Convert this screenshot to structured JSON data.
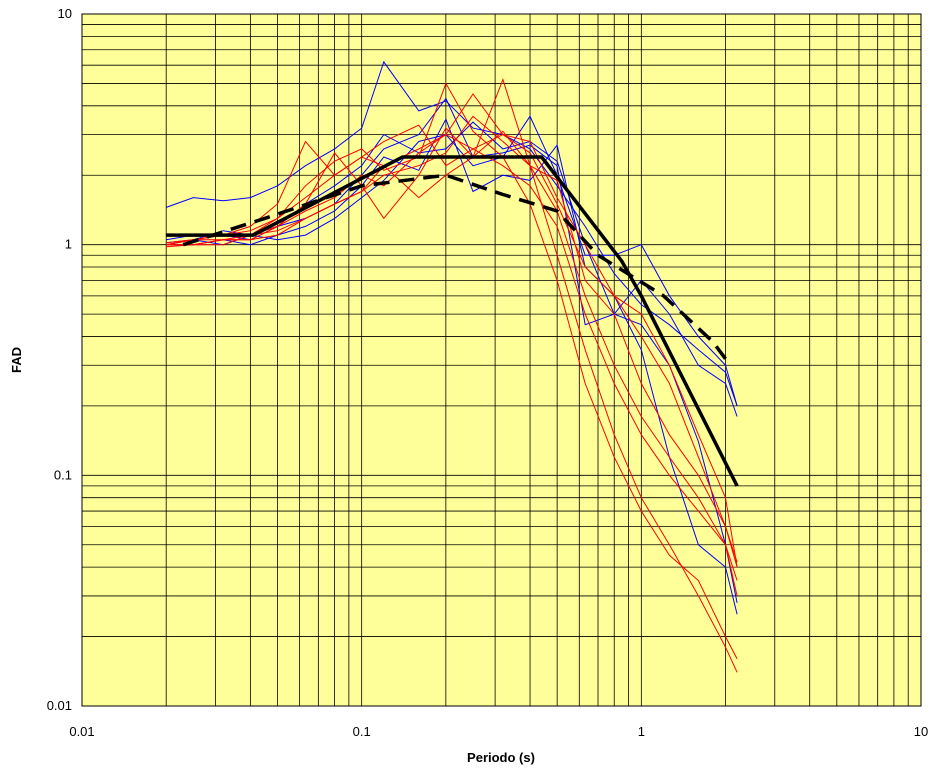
{
  "chart_data": {
    "type": "line",
    "xlabel": "Periodo (s)",
    "ylabel": "FAD",
    "x_scale": "log",
    "y_scale": "log",
    "xlim": [
      0.01,
      10
    ],
    "ylim": [
      0.01,
      10
    ],
    "x_ticks": [
      "0.01",
      "0.1",
      "1",
      "10"
    ],
    "y_ticks": [
      "0.01",
      "0.1",
      "1",
      "10"
    ],
    "grid": true,
    "legend": "none",
    "colors": {
      "plot_background": "#ffff99",
      "grid": "#000000",
      "blue_series": "#0000ff",
      "red_series": "#ff0000",
      "envelope": "#000000"
    },
    "series": [
      {
        "color": "#0000ff",
        "x": [
          0.02,
          0.025,
          0.032,
          0.04,
          0.05,
          0.063,
          0.08,
          0.1,
          0.12,
          0.16,
          0.2,
          0.25,
          0.32,
          0.4,
          0.5,
          0.63,
          0.8,
          1,
          1.26,
          1.6,
          2,
          2.2
        ],
        "y": [
          1.45,
          1.6,
          1.55,
          1.6,
          1.8,
          2.2,
          2.6,
          3.2,
          6.2,
          3.8,
          4.2,
          3.2,
          3.0,
          2.6,
          1.8,
          1.2,
          0.75,
          0.55,
          0.45,
          0.35,
          0.28,
          0.2
        ]
      },
      {
        "color": "#0000ff",
        "x": [
          0.02,
          0.025,
          0.032,
          0.04,
          0.05,
          0.063,
          0.08,
          0.1,
          0.12,
          0.16,
          0.2,
          0.25,
          0.32,
          0.4,
          0.5,
          0.63,
          0.8,
          1,
          1.26,
          1.6,
          2,
          2.2
        ],
        "y": [
          1.05,
          1.1,
          1.1,
          1.05,
          1.2,
          1.5,
          1.8,
          2.2,
          3.0,
          2.5,
          2.6,
          3.4,
          2.6,
          2.8,
          2.3,
          1.0,
          0.5,
          0.45,
          0.3,
          0.14,
          0.05,
          0.028
        ]
      },
      {
        "color": "#0000ff",
        "x": [
          0.02,
          0.025,
          0.032,
          0.04,
          0.05,
          0.063,
          0.08,
          0.1,
          0.12,
          0.16,
          0.2,
          0.25,
          0.32,
          0.4,
          0.5,
          0.63,
          0.8,
          1,
          1.26,
          1.6,
          2,
          2.2
        ],
        "y": [
          1.02,
          1.05,
          1.15,
          1.1,
          1.05,
          1.1,
          1.3,
          1.6,
          1.9,
          2.8,
          3.0,
          2.2,
          2.4,
          3.6,
          2.0,
          0.9,
          0.9,
          1.0,
          0.6,
          0.4,
          0.3,
          0.2
        ]
      },
      {
        "color": "#0000ff",
        "x": [
          0.02,
          0.025,
          0.032,
          0.04,
          0.05,
          0.063,
          0.08,
          0.1,
          0.12,
          0.16,
          0.2,
          0.25,
          0.32,
          0.4,
          0.5,
          0.63,
          0.8,
          1,
          1.26,
          1.6,
          2,
          2.2
        ],
        "y": [
          1.0,
          1.0,
          1.05,
          1.0,
          1.1,
          1.2,
          1.4,
          1.8,
          2.4,
          2.1,
          3.5,
          1.7,
          2.0,
          1.9,
          2.7,
          0.8,
          0.6,
          0.35,
          0.12,
          0.05,
          0.04,
          0.025
        ]
      },
      {
        "color": "#0000ff",
        "x": [
          0.02,
          0.025,
          0.032,
          0.04,
          0.05,
          0.063,
          0.08,
          0.1,
          0.12,
          0.16,
          0.2,
          0.25,
          0.32,
          0.4,
          0.5,
          0.63,
          0.8,
          1,
          1.26,
          1.6,
          2,
          2.2
        ],
        "y": [
          1.0,
          1.05,
          1.0,
          1.1,
          1.2,
          1.3,
          1.5,
          2.0,
          2.6,
          3.0,
          4.3,
          2.4,
          2.5,
          2.7,
          2.2,
          0.45,
          0.5,
          0.7,
          0.5,
          0.3,
          0.25,
          0.18
        ]
      },
      {
        "color": "#ff0000",
        "x": [
          0.02,
          0.025,
          0.032,
          0.04,
          0.05,
          0.063,
          0.08,
          0.1,
          0.12,
          0.16,
          0.2,
          0.25,
          0.32,
          0.4,
          0.5,
          0.63,
          0.8,
          1,
          1.26,
          1.6,
          2,
          2.2
        ],
        "y": [
          1.0,
          1.05,
          1.1,
          1.2,
          1.5,
          2.8,
          2.0,
          2.4,
          2.2,
          2.6,
          3.0,
          4.5,
          3.0,
          2.5,
          1.5,
          0.8,
          0.6,
          0.5,
          0.3,
          0.15,
          0.08,
          0.04
        ]
      },
      {
        "color": "#ff0000",
        "x": [
          0.02,
          0.025,
          0.032,
          0.04,
          0.05,
          0.063,
          0.08,
          0.1,
          0.12,
          0.16,
          0.2,
          0.25,
          0.32,
          0.4,
          0.5,
          0.63,
          0.8,
          1,
          1.26,
          1.6,
          2,
          2.2
        ],
        "y": [
          1.0,
          1.0,
          1.05,
          1.05,
          1.2,
          1.5,
          2.5,
          1.8,
          1.3,
          2.0,
          3.2,
          2.4,
          5.2,
          2.2,
          0.9,
          0.35,
          0.15,
          0.08,
          0.05,
          0.03,
          0.018,
          0.014
        ]
      },
      {
        "color": "#ff0000",
        "x": [
          0.02,
          0.025,
          0.032,
          0.04,
          0.05,
          0.063,
          0.08,
          0.1,
          0.12,
          0.16,
          0.2,
          0.25,
          0.32,
          0.4,
          0.5,
          0.63,
          0.8,
          1,
          1.26,
          1.6,
          2,
          2.2
        ],
        "y": [
          0.98,
          1.0,
          1.0,
          1.1,
          1.3,
          1.8,
          2.3,
          2.6,
          2.1,
          2.4,
          5.0,
          3.1,
          2.4,
          1.5,
          0.7,
          0.25,
          0.12,
          0.07,
          0.045,
          0.035,
          0.02,
          0.016
        ]
      },
      {
        "color": "#ff0000",
        "x": [
          0.02,
          0.025,
          0.032,
          0.04,
          0.05,
          0.063,
          0.08,
          0.1,
          0.12,
          0.16,
          0.2,
          0.25,
          0.32,
          0.4,
          0.5,
          0.63,
          0.8,
          1,
          1.26,
          1.6,
          2,
          2.2
        ],
        "y": [
          1.02,
          1.05,
          1.1,
          1.15,
          1.3,
          1.6,
          2.0,
          2.4,
          2.8,
          3.3,
          2.2,
          2.6,
          3.0,
          2.8,
          1.6,
          1.0,
          0.6,
          0.4,
          0.25,
          0.12,
          0.06,
          0.04
        ]
      },
      {
        "color": "#ff0000",
        "x": [
          0.02,
          0.025,
          0.032,
          0.04,
          0.05,
          0.063,
          0.08,
          0.1,
          0.12,
          0.16,
          0.2,
          0.25,
          0.32,
          0.4,
          0.5,
          0.63,
          0.8,
          1,
          1.26,
          1.6,
          2,
          2.2
        ],
        "y": [
          1.0,
          1.05,
          1.1,
          1.1,
          1.2,
          1.4,
          1.6,
          2.0,
          1.8,
          2.5,
          3.0,
          2.6,
          2.2,
          1.8,
          1.2,
          0.5,
          0.25,
          0.15,
          0.1,
          0.07,
          0.05,
          0.035
        ]
      },
      {
        "color": "#ff0000",
        "x": [
          0.02,
          0.025,
          0.032,
          0.04,
          0.05,
          0.063,
          0.08,
          0.1,
          0.12,
          0.16,
          0.2,
          0.25,
          0.32,
          0.4,
          0.5,
          0.63,
          0.8,
          1,
          1.26,
          1.6,
          2,
          2.2
        ],
        "y": [
          1.0,
          1.0,
          1.05,
          1.05,
          1.1,
          1.3,
          1.5,
          1.7,
          2.0,
          2.2,
          2.5,
          3.6,
          2.8,
          2.2,
          1.9,
          0.7,
          0.5,
          0.25,
          0.15,
          0.1,
          0.06,
          0.042
        ]
      },
      {
        "color": "#ff0000",
        "x": [
          0.02,
          0.025,
          0.032,
          0.04,
          0.05,
          0.063,
          0.08,
          0.1,
          0.12,
          0.16,
          0.2,
          0.25,
          0.32,
          0.4,
          0.5,
          0.63,
          0.8,
          1,
          1.26,
          1.6,
          2,
          2.2
        ],
        "y": [
          1.0,
          1.05,
          1.05,
          1.1,
          1.15,
          1.3,
          1.5,
          1.7,
          2.2,
          1.6,
          2.0,
          2.4,
          3.1,
          2.2,
          1.4,
          0.6,
          0.3,
          0.18,
          0.12,
          0.08,
          0.05,
          0.03
        ]
      }
    ],
    "envelopes": [
      {
        "style": "solid",
        "x": [
          0.02,
          0.041,
          0.14,
          0.44,
          0.85,
          1.0,
          2.2
        ],
        "y": [
          1.1,
          1.1,
          2.4,
          2.4,
          0.85,
          0.6,
          0.09
        ]
      },
      {
        "style": "dashed",
        "x": [
          0.023,
          0.045,
          0.1,
          0.2,
          0.32,
          0.5,
          0.7,
          1.2,
          1.8,
          2.0
        ],
        "y": [
          1.0,
          1.3,
          1.8,
          2.0,
          1.65,
          1.4,
          0.9,
          0.6,
          0.38,
          0.32
        ]
      }
    ]
  }
}
